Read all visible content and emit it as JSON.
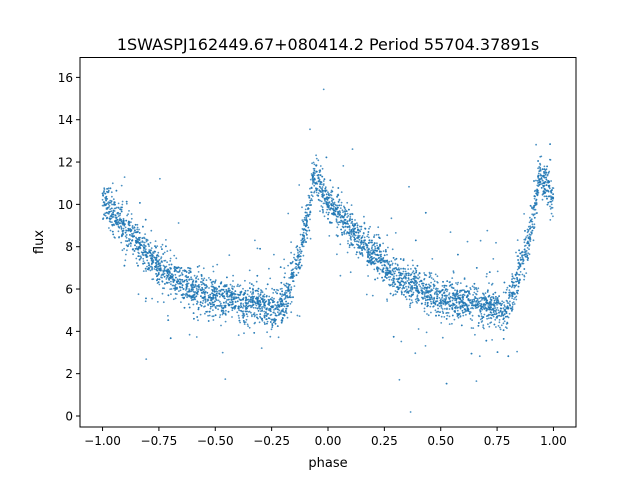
{
  "chart_data": {
    "type": "scatter",
    "title": "1SWASPJ162449.67+080414.2 Period 55704.37891s",
    "xlabel": "phase",
    "ylabel": "flux",
    "xlim": [
      -1.1,
      1.1
    ],
    "ylim": [
      -0.52,
      16.94
    ],
    "xticks": [
      -1.0,
      -0.75,
      -0.5,
      -0.25,
      0.0,
      0.25,
      0.5,
      0.75,
      1.0
    ],
    "xtick_labels": [
      "−1.00",
      "−0.75",
      "−0.50",
      "−0.25",
      "0.00",
      "0.25",
      "0.50",
      "0.75",
      "1.00"
    ],
    "yticks": [
      0,
      2,
      4,
      6,
      8,
      10,
      12,
      14,
      16
    ],
    "ytick_labels": [
      "0",
      "2",
      "4",
      "6",
      "8",
      "10",
      "12",
      "14",
      "16"
    ],
    "grid": false,
    "legend": "none",
    "marker_color": "#1f77b4",
    "period_phase_range": [
      -1.0,
      1.0
    ],
    "light_curve_median": {
      "phase": [
        0.0,
        0.1,
        0.2,
        0.3,
        0.4,
        0.5,
        0.6,
        0.7,
        0.78,
        0.82,
        0.88,
        0.92,
        0.94,
        0.96,
        0.98,
        1.0
      ],
      "flux": [
        10.2,
        8.8,
        7.6,
        6.6,
        6.0,
        5.6,
        5.4,
        5.2,
        5.0,
        5.8,
        7.8,
        10.0,
        11.5,
        11.0,
        10.6,
        10.2
      ]
    },
    "flux_scatter": 0.55
  }
}
